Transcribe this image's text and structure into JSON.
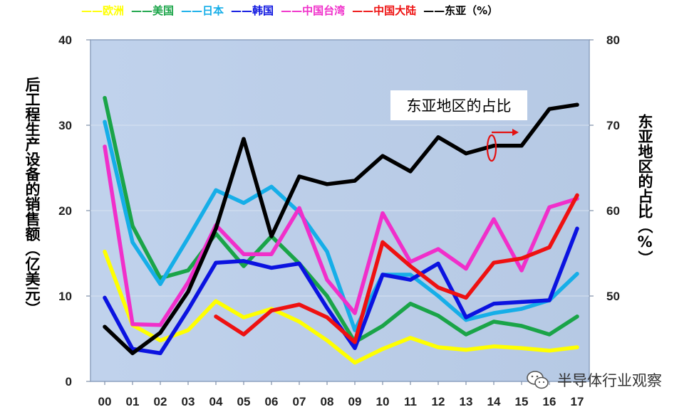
{
  "chart_data": {
    "type": "line",
    "categories": [
      "00",
      "01",
      "02",
      "03",
      "04",
      "05",
      "06",
      "07",
      "08",
      "09",
      "10",
      "11",
      "12",
      "13",
      "14",
      "15",
      "16",
      "17"
    ],
    "ylabel": "后工程生产设备的销售额（亿美元）",
    "y2label": "东亚地区的占比（%）",
    "ylim": [
      0,
      40
    ],
    "y2lim": [
      40,
      80
    ],
    "yticks": [
      "0",
      "10",
      "20",
      "30",
      "40"
    ],
    "y2ticks": [
      "50",
      "60",
      "70",
      "80"
    ],
    "annotation": "东亚地区的占比",
    "legend_position": "top",
    "series": [
      {
        "name": "欧洲",
        "legend_label": "——欧洲",
        "color": "#ffff00",
        "axis": "left",
        "values": [
          15.2,
          6.6,
          4.8,
          6.0,
          9.4,
          7.5,
          8.5,
          7.0,
          4.8,
          2.2,
          3.8,
          5.1,
          4.0,
          3.7,
          4.1,
          3.9,
          3.6,
          4.0
        ]
      },
      {
        "name": "美国",
        "legend_label": "——美国",
        "color": "#1aa448",
        "axis": "left",
        "values": [
          33.2,
          18.2,
          12.1,
          13.0,
          17.3,
          13.5,
          17.0,
          13.8,
          10.0,
          4.6,
          6.5,
          9.1,
          7.7,
          5.5,
          7.0,
          6.5,
          5.5,
          7.6
        ]
      },
      {
        "name": "日本",
        "legend_label": "——日本",
        "color": "#16aee8",
        "axis": "left",
        "values": [
          30.4,
          16.3,
          11.4,
          16.8,
          22.4,
          20.9,
          22.8,
          19.8,
          15.2,
          6.0,
          12.5,
          12.5,
          10.0,
          7.2,
          8.0,
          8.5,
          9.5,
          12.6
        ]
      },
      {
        "name": "韩国",
        "legend_label": "——韩国",
        "color": "#0b13e0",
        "axis": "left",
        "values": [
          9.8,
          3.8,
          3.3,
          8.4,
          13.9,
          14.1,
          13.3,
          13.8,
          8.6,
          3.9,
          12.5,
          11.9,
          13.8,
          7.5,
          9.1,
          9.3,
          9.5,
          17.9
        ]
      },
      {
        "name": "中国台湾",
        "legend_label": "——中国台湾",
        "color": "#f02fca",
        "axis": "left",
        "values": [
          27.5,
          6.7,
          6.6,
          11.6,
          18.3,
          14.9,
          14.9,
          20.3,
          11.9,
          8.0,
          19.7,
          14.0,
          15.5,
          13.2,
          19.0,
          13.0,
          20.4,
          21.4
        ]
      },
      {
        "name": "中国大陆",
        "legend_label": "——中国大陆",
        "color": "#ee1111",
        "axis": "left",
        "values": [
          null,
          null,
          null,
          null,
          7.6,
          5.5,
          8.3,
          9.0,
          7.5,
          4.6,
          16.3,
          13.5,
          11.0,
          9.8,
          13.9,
          14.4,
          15.7,
          21.8
        ]
      },
      {
        "name": "东亚",
        "legend_label": "——东亚（%）",
        "color": "#000000",
        "axis": "right",
        "values": [
          46.4,
          43.3,
          45.7,
          50.5,
          57.9,
          68.4,
          57.0,
          64.0,
          63.1,
          63.5,
          66.4,
          64.6,
          68.6,
          66.7,
          67.6,
          67.6,
          71.9,
          72.4
        ]
      }
    ]
  },
  "annotation_box": {
    "text": "东亚地区的占比"
  },
  "watermark": {
    "text": "半导体行业观察",
    "icon": "wechat-icon"
  },
  "colors": {
    "plot_background": "#bccee8",
    "plot_border": "#8da2c0"
  }
}
